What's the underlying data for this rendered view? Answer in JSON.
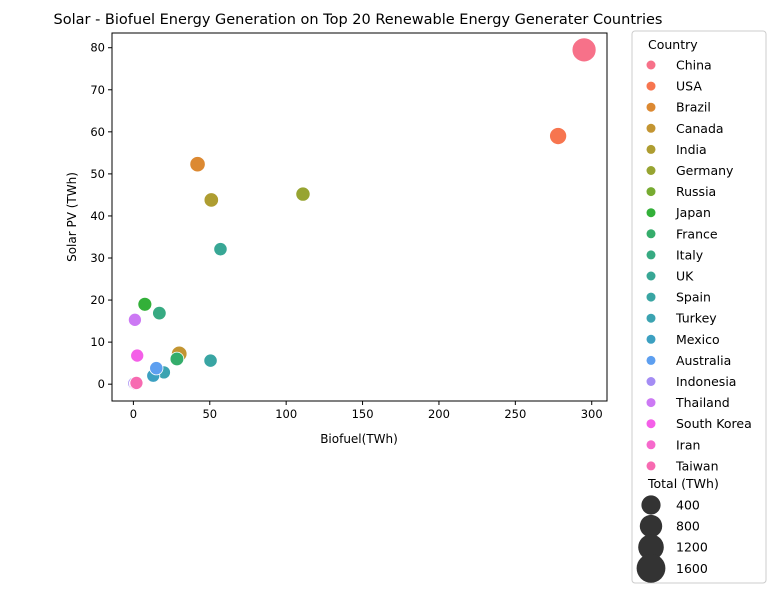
{
  "chart_data": {
    "type": "scatter",
    "title": "Solar - Biofuel Energy Generation on Top 20 Renewable Energy Generater Countries",
    "xlabel": "Biofuel(TWh)",
    "ylabel": "Solar PV (TWh)",
    "xlim": [
      -14,
      310
    ],
    "ylim": [
      -4,
      83.5
    ],
    "xticks": [
      0,
      50,
      100,
      150,
      200,
      250,
      300
    ],
    "yticks": [
      0,
      10,
      20,
      30,
      40,
      50,
      60,
      70,
      80
    ],
    "grid": false,
    "legend": {
      "placement": "outside-right",
      "hue_title": "Country",
      "size_title": "Total (TWh)",
      "size_entries": [
        400,
        800,
        1200,
        1600
      ]
    },
    "series": [
      {
        "name": "China",
        "color": "#f77189",
        "x": 295,
        "y": 79.5,
        "size": 2000
      },
      {
        "name": "USA",
        "color": "#f7754f",
        "x": 278,
        "y": 59,
        "size": 620
      },
      {
        "name": "Brazil",
        "color": "#dc8932",
        "x": 42,
        "y": 52.3,
        "size": 400
      },
      {
        "name": "Canada",
        "color": "#c39532",
        "x": 30,
        "y": 7.2,
        "size": 420
      },
      {
        "name": "India",
        "color": "#ae9d31",
        "x": 51,
        "y": 43.8,
        "size": 300
      },
      {
        "name": "Germany",
        "color": "#97a431",
        "x": 111,
        "y": 45.2,
        "size": 280
      },
      {
        "name": "Russia",
        "color": "#77ab31",
        "x": 0.3,
        "y": 0.2,
        "size": 200
      },
      {
        "name": "Japan",
        "color": "#33b039",
        "x": 7.5,
        "y": 19.0,
        "size": 250
      },
      {
        "name": "France",
        "color": "#35ad6b",
        "x": 28.5,
        "y": 6.0,
        "size": 230
      },
      {
        "name": "Italy",
        "color": "#37aa82",
        "x": 17.0,
        "y": 16.9,
        "size": 220
      },
      {
        "name": "UK",
        "color": "#38a795",
        "x": 57,
        "y": 32.1,
        "size": 200
      },
      {
        "name": "Spain",
        "color": "#39a5a3",
        "x": 50.5,
        "y": 5.6,
        "size": 200
      },
      {
        "name": "Turkey",
        "color": "#3ba3b1",
        "x": 20,
        "y": 2.8,
        "size": 180
      },
      {
        "name": "Mexico",
        "color": "#3ca0c1",
        "x": 13,
        "y": 2.0,
        "size": 180
      },
      {
        "name": "Australia",
        "color": "#5d9ff0",
        "x": 15,
        "y": 3.8,
        "size": 200
      },
      {
        "name": "Indonesia",
        "color": "#a48cf4",
        "x": 0.5,
        "y": 0.2,
        "size": 160
      },
      {
        "name": "Thailand",
        "color": "#cc79f4",
        "x": 1.0,
        "y": 15.3,
        "size": 180
      },
      {
        "name": "South Korea",
        "color": "#f45fe8",
        "x": 2.5,
        "y": 6.8,
        "size": 180
      },
      {
        "name": "Iran",
        "color": "#f669cc",
        "x": 1.5,
        "y": 0.1,
        "size": 160
      },
      {
        "name": "Taiwan",
        "color": "#f76ab1",
        "x": 2.0,
        "y": 0.3,
        "size": 180
      }
    ]
  }
}
